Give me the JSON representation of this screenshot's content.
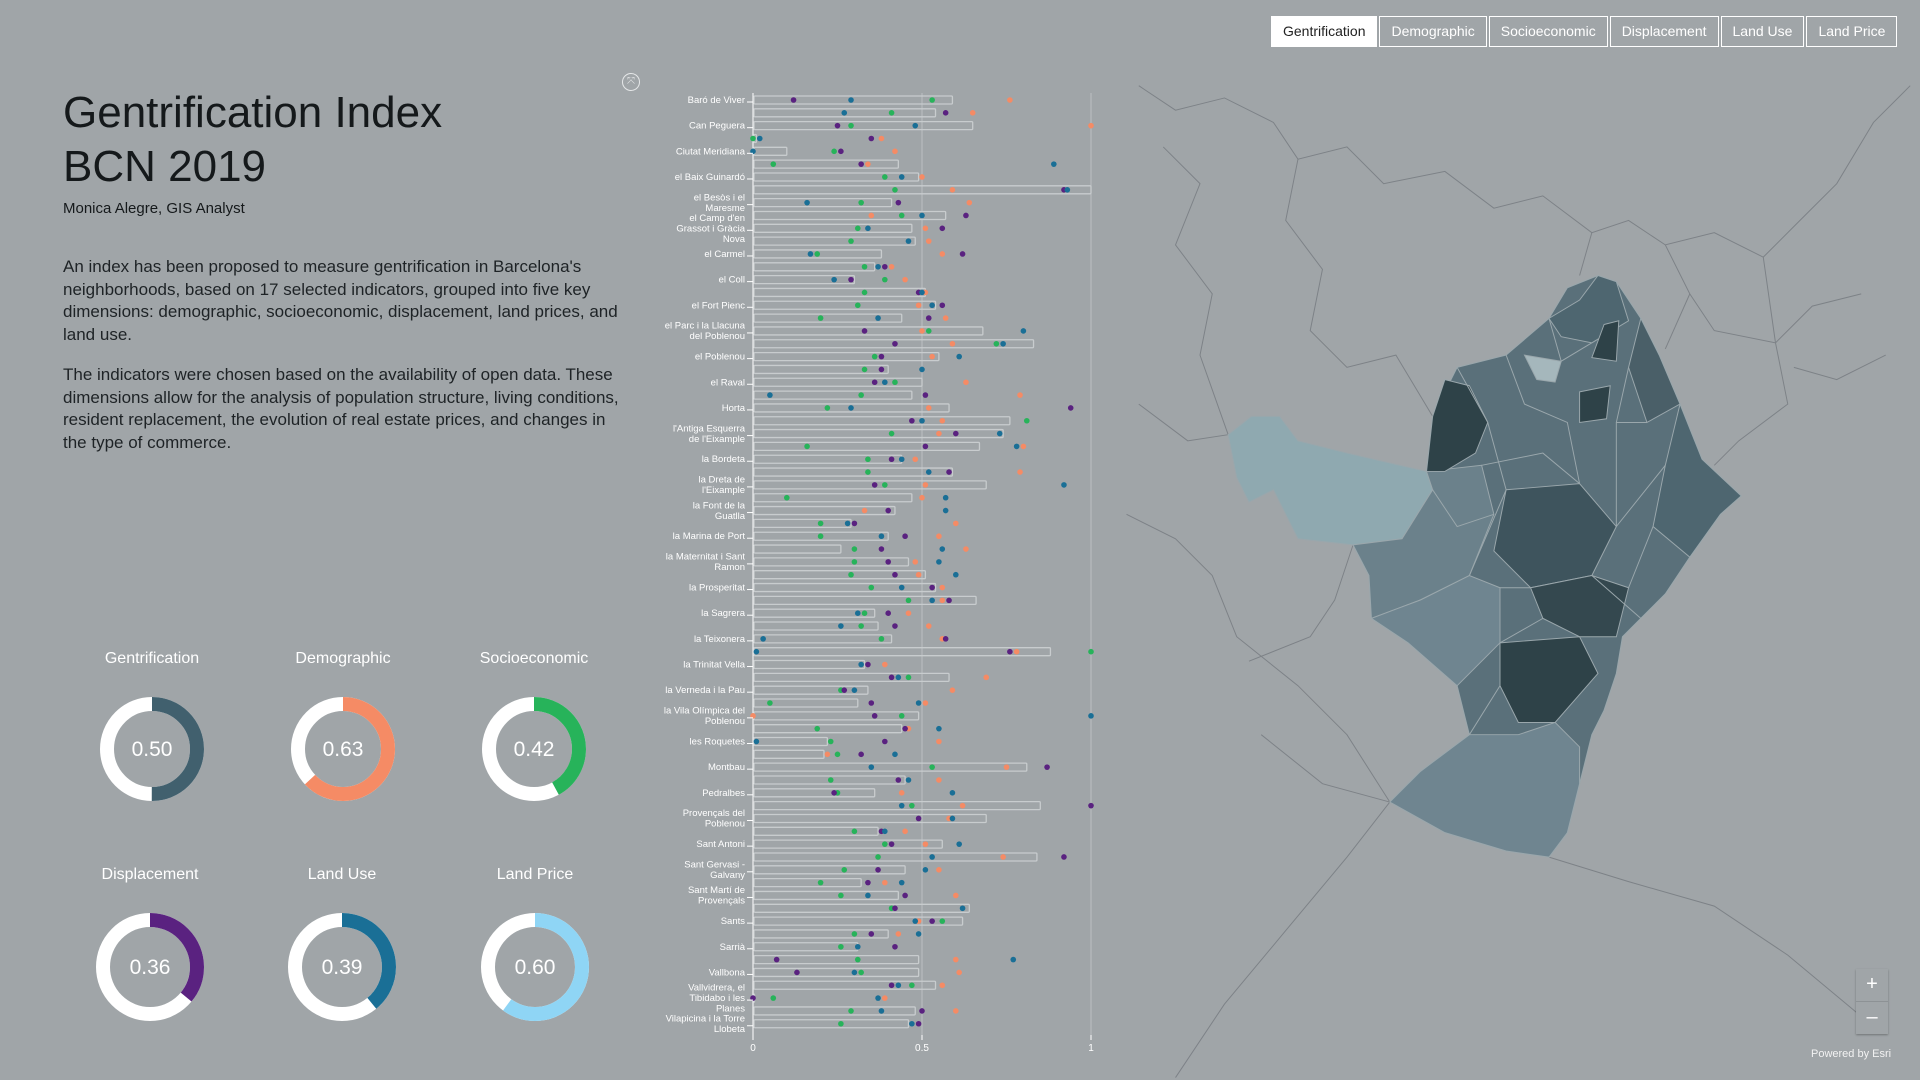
{
  "header": {
    "title_line1": "Gentrification Index",
    "title_line2": "BCN 2019",
    "author": "Monica Alegre, GIS Analyst",
    "paragraphs": [
      "An index has been proposed to measure gentrification in Barcelona's neighborhoods, based on 17 selected indicators, grouped into five key dimensions: demographic, socioeconomic, displacement, land prices, and land use.",
      "The indicators were chosen based on the availability of open data. These dimensions allow for the analysis of population structure, living conditions, resident replacement, the evolution of real estate prices, and changes in the type of commerce."
    ]
  },
  "tabs": [
    {
      "label": "Gentrification",
      "active": true
    },
    {
      "label": "Demographic",
      "active": false
    },
    {
      "label": "Socioeconomic",
      "active": false
    },
    {
      "label": "Displacement",
      "active": false
    },
    {
      "label": "Land Use",
      "active": false
    },
    {
      "label": "Land Price",
      "active": false
    }
  ],
  "gauges": [
    {
      "label": "Gentrification",
      "value": "0.50",
      "fraction": 0.5,
      "color": "#41606e"
    },
    {
      "label": "Demographic",
      "value": "0.63",
      "fraction": 0.63,
      "color": "#f58b65"
    },
    {
      "label": "Socioeconomic",
      "value": "0.42",
      "fraction": 0.42,
      "color": "#27b35a"
    },
    {
      "label": "Displacement",
      "value": "0.36",
      "fraction": 0.36,
      "color": "#5a2280"
    },
    {
      "label": "Land Use",
      "value": "0.39",
      "fraction": 0.39,
      "color": "#1a6f96"
    },
    {
      "label": "Land Price",
      "value": "0.60",
      "fraction": 0.6,
      "color": "#8fd5f5"
    }
  ],
  "map": {
    "zoom_in": "+",
    "zoom_out": "–",
    "attribution": "Powered by Esri",
    "colors": {
      "light": "#8fa9b0",
      "medium": "#5a707a",
      "dark": "#2e4248",
      "port": "#6f8590"
    }
  },
  "icons": {
    "fullscreen": "fullscreen-icon",
    "zoom_in": "plus-icon",
    "zoom_out": "minus-icon"
  },
  "chart_data": {
    "type": "bar",
    "orientation": "horizontal",
    "title": "",
    "xlim": [
      0,
      1
    ],
    "xticks": [
      "0",
      "0.5",
      "1"
    ],
    "grid": true,
    "bar_series": "Gentrification",
    "dot_series": [
      {
        "key": "demographic",
        "color": "#f58b65"
      },
      {
        "key": "socioeconomic",
        "color": "#27b35a"
      },
      {
        "key": "displacement",
        "color": "#5a2280"
      },
      {
        "key": "land_use",
        "color": "#1a6f96"
      }
    ],
    "columns": [
      "label",
      "gentrification",
      "demographic",
      "socioeconomic",
      "displacement",
      "land_use"
    ],
    "rows": [
      [
        "Baró de Viver",
        0.59,
        0.76,
        0.53,
        0.12,
        0.29
      ],
      [
        "",
        0.54,
        0.65,
        0.41,
        0.57,
        0.27
      ],
      [
        "Can Peguera",
        0.65,
        1.0,
        0.29,
        0.25,
        0.48
      ],
      [
        "",
        0.01,
        0.38,
        0.0,
        0.35,
        0.02
      ],
      [
        "Ciutat Meridiana",
        0.1,
        0.42,
        0.24,
        0.26,
        0.0
      ],
      [
        "",
        0.43,
        0.34,
        0.06,
        0.32,
        0.89
      ],
      [
        "el Baix Guinardó",
        0.49,
        0.5,
        0.39,
        null,
        0.44
      ],
      [
        "",
        1.0,
        0.59,
        0.42,
        0.92,
        0.93
      ],
      [
        "el Besòs i el Maresme",
        0.41,
        0.64,
        0.32,
        0.43,
        0.16
      ],
      [
        "",
        0.57,
        0.35,
        0.44,
        0.63,
        0.5
      ],
      [
        "el Camp d'en Grassot i Gràcia Nova",
        0.47,
        0.51,
        0.31,
        0.56,
        0.34
      ],
      [
        "",
        0.48,
        0.52,
        0.29,
        null,
        0.46
      ],
      [
        "el Carmel",
        0.38,
        0.56,
        0.19,
        0.62,
        0.17
      ],
      [
        "",
        0.36,
        0.41,
        0.33,
        0.39,
        0.37
      ],
      [
        "el Coll",
        0.3,
        0.45,
        0.39,
        0.29,
        0.24
      ],
      [
        "",
        0.51,
        0.51,
        0.33,
        0.49,
        0.5
      ],
      [
        "el Fort Pienc",
        0.54,
        0.49,
        0.31,
        0.56,
        0.53
      ],
      [
        "",
        0.44,
        0.57,
        0.2,
        0.52,
        0.37
      ],
      [
        "el Parc i la Llacuna del Poblenou",
        0.68,
        0.5,
        0.52,
        0.33,
        0.8
      ],
      [
        "",
        0.83,
        0.59,
        0.72,
        0.42,
        0.74
      ],
      [
        "el Poblenou",
        0.55,
        0.53,
        0.36,
        0.38,
        0.61
      ],
      [
        "",
        0.4,
        null,
        0.33,
        0.38,
        0.5
      ],
      [
        "el Raval",
        0.5,
        0.63,
        0.42,
        0.36,
        0.39
      ],
      [
        "",
        0.47,
        0.79,
        0.32,
        0.51,
        0.05
      ],
      [
        "Horta",
        0.58,
        0.52,
        0.22,
        0.94,
        0.29
      ],
      [
        "",
        0.76,
        0.56,
        0.81,
        0.47,
        0.5
      ],
      [
        "l'Antiga Esquerra de l'Eixample",
        0.74,
        0.55,
        0.41,
        0.6,
        0.73
      ],
      [
        "",
        0.67,
        0.8,
        0.16,
        0.51,
        0.78
      ],
      [
        "la Bordeta",
        0.44,
        0.48,
        0.34,
        0.41,
        0.44
      ],
      [
        "",
        0.59,
        0.79,
        0.34,
        0.58,
        0.52
      ],
      [
        "la Dreta de l'Eixample",
        0.69,
        0.51,
        0.39,
        0.36,
        0.92
      ],
      [
        "",
        0.47,
        0.5,
        0.1,
        null,
        0.57
      ],
      [
        "la Font de la Guatlla",
        0.42,
        0.33,
        null,
        0.4,
        0.57
      ],
      [
        "",
        0.29,
        0.6,
        0.2,
        0.3,
        0.28
      ],
      [
        "la Marina de Port",
        0.4,
        0.55,
        0.2,
        0.45,
        0.38
      ],
      [
        "",
        0.26,
        0.63,
        0.3,
        0.38,
        0.56
      ],
      [
        "la Maternitat i Sant Ramon",
        0.46,
        0.48,
        0.3,
        0.4,
        0.55
      ],
      [
        "",
        0.51,
        0.49,
        0.29,
        0.42,
        0.6
      ],
      [
        "la Prosperitat",
        0.54,
        0.56,
        0.35,
        0.53,
        0.44
      ],
      [
        "",
        0.66,
        0.56,
        0.46,
        0.58,
        0.53
      ],
      [
        "la Sagrera",
        0.36,
        0.46,
        0.33,
        0.4,
        0.31
      ],
      [
        "",
        0.37,
        0.52,
        0.32,
        0.42,
        0.26
      ],
      [
        "la Teixonera",
        0.41,
        0.56,
        0.38,
        0.57,
        0.03
      ],
      [
        "",
        0.88,
        0.78,
        1.0,
        0.76,
        0.01
      ],
      [
        "la Trinitat Vella",
        0.33,
        0.39,
        null,
        0.34,
        0.32
      ],
      [
        "",
        0.58,
        0.69,
        0.46,
        0.41,
        0.43
      ],
      [
        "la Verneda i la Pau",
        0.34,
        0.59,
        0.26,
        0.27,
        0.3
      ],
      [
        "",
        0.31,
        0.51,
        0.05,
        0.35,
        0.49
      ],
      [
        "la Vila Olímpica del Poblenou",
        0.49,
        0.0,
        0.44,
        0.36,
        1.0
      ],
      [
        "",
        0.44,
        0.46,
        0.19,
        0.45,
        0.55
      ],
      [
        "les Roquetes",
        0.22,
        0.55,
        0.23,
        0.39,
        0.01
      ],
      [
        "",
        0.21,
        0.22,
        0.25,
        0.32,
        0.42
      ],
      [
        "Montbau",
        0.81,
        0.75,
        0.53,
        0.87,
        0.35
      ],
      [
        "",
        0.45,
        0.55,
        0.23,
        0.43,
        0.46
      ],
      [
        "Pedralbes",
        0.36,
        0.44,
        0.25,
        0.24,
        0.59
      ],
      [
        "",
        0.85,
        0.62,
        0.47,
        1.0,
        0.44
      ],
      [
        "Provençals del Poblenou",
        0.69,
        0.58,
        null,
        0.49,
        0.59
      ],
      [
        "",
        0.37,
        0.45,
        0.3,
        0.38,
        0.39
      ],
      [
        "Sant Antoni",
        0.56,
        0.51,
        0.39,
        0.41,
        0.61
      ],
      [
        "",
        0.84,
        0.74,
        0.37,
        0.92,
        0.53
      ],
      [
        "Sant Gervasi - Galvany",
        0.45,
        0.55,
        0.27,
        0.37,
        0.51
      ],
      [
        "",
        0.32,
        0.39,
        0.2,
        0.34,
        0.44
      ],
      [
        "Sant Martí de Provençals",
        0.43,
        0.6,
        0.26,
        0.45,
        0.34
      ],
      [
        "",
        0.64,
        null,
        0.41,
        0.42,
        0.62
      ],
      [
        "Sants",
        0.62,
        0.49,
        0.56,
        0.53,
        0.48
      ],
      [
        "",
        0.4,
        0.43,
        0.3,
        0.35,
        0.49
      ],
      [
        "Sarrià",
        0.31,
        null,
        0.26,
        0.42,
        0.31
      ],
      [
        "",
        0.49,
        0.6,
        0.31,
        0.07,
        0.77
      ],
      [
        "Vallbona",
        0.49,
        0.61,
        0.32,
        0.13,
        0.3
      ],
      [
        "",
        0.54,
        0.56,
        0.47,
        0.41,
        0.43
      ],
      [
        "Vallvidrera, el Tibidabo i les Planes",
        0.0,
        0.39,
        0.06,
        0.0,
        0.37
      ],
      [
        "",
        0.48,
        0.6,
        0.29,
        0.5,
        0.38
      ],
      [
        "Vilapicina i la Torre Llobeta",
        0.46,
        null,
        0.26,
        0.49,
        0.47
      ]
    ]
  }
}
